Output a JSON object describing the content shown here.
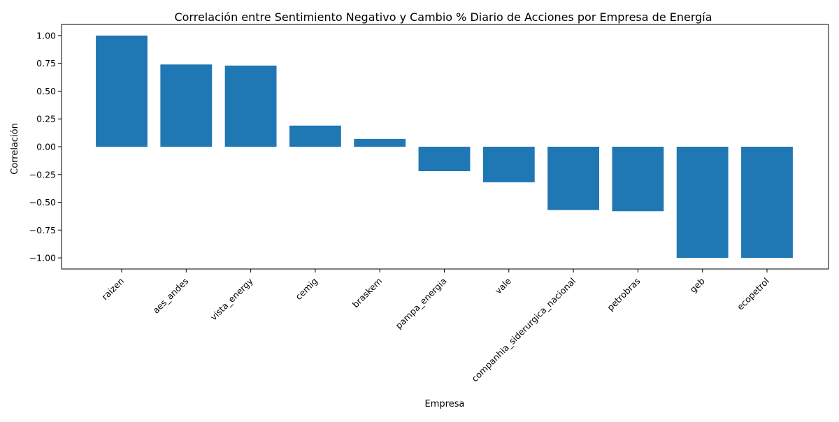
{
  "chart_data": {
    "type": "bar",
    "title": "Correlación entre Sentimiento Negativo y Cambio % Diario de Acciones por Empresa de Energía",
    "xlabel": "Empresa",
    "ylabel": "Correlación",
    "categories": [
      "raizen",
      "aes_andes",
      "vista_energy",
      "cemig",
      "braskem",
      "pampa_energia",
      "vale",
      "companhia_siderurgica_nacional",
      "petrobras",
      "geb",
      "ecopetrol"
    ],
    "values": [
      1.0,
      0.74,
      0.73,
      0.19,
      0.07,
      -0.22,
      -0.32,
      -0.57,
      -0.58,
      -1.0,
      -1.0
    ],
    "ylim": [
      -1.1,
      1.1
    ],
    "yticks": [
      "1.00",
      "0.75",
      "0.50",
      "0.25",
      "0.00",
      "−0.25",
      "−0.50",
      "−0.75",
      "−1.00"
    ],
    "grid": false,
    "bar_color": "#1f77b4"
  }
}
